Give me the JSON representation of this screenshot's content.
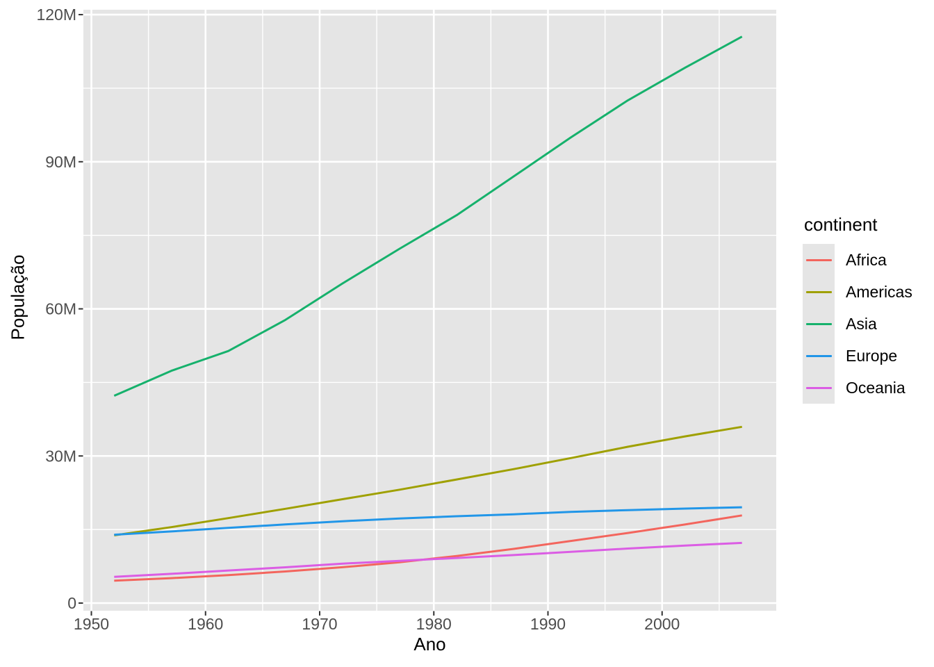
{
  "figure": {
    "background": "#FFFFFF",
    "panel_background": "#E5E5E5",
    "gridline_color": "#FFFFFF",
    "tick_color": "#333333",
    "axis_text_color": "#4D4D4D",
    "axis_title_color": "#000000"
  },
  "chart_data": {
    "type": "line",
    "title": "",
    "xlabel": "Ano",
    "ylabel": "População",
    "legend_title": "continent",
    "legend_position": "right",
    "grid": true,
    "x": [
      1952,
      1957,
      1962,
      1967,
      1972,
      1977,
      1982,
      1987,
      1992,
      1997,
      2002,
      2007
    ],
    "series": [
      {
        "name": "Africa",
        "color": "#F3655D",
        "values": [
          4.57,
          5.09,
          5.7,
          6.45,
          7.31,
          8.33,
          9.6,
          11.05,
          12.67,
          14.3,
          16.03,
          17.88
        ]
      },
      {
        "name": "Americas",
        "color": "#9FA000",
        "values": [
          13.81,
          15.48,
          17.33,
          19.23,
          21.18,
          23.12,
          25.21,
          27.31,
          29.57,
          31.88,
          33.99,
          35.95
        ]
      },
      {
        "name": "Asia",
        "color": "#16B16C",
        "values": [
          42.28,
          47.36,
          51.4,
          57.75,
          65.18,
          72.26,
          79.1,
          87.01,
          94.95,
          102.52,
          109.15,
          115.51
        ]
      },
      {
        "name": "Europe",
        "color": "#2196E8",
        "values": [
          13.94,
          14.6,
          15.35,
          16.04,
          16.69,
          17.24,
          17.71,
          18.1,
          18.6,
          18.96,
          19.27,
          19.54
        ]
      },
      {
        "name": "Oceania",
        "color": "#DB5DE4",
        "values": [
          5.34,
          5.97,
          6.64,
          7.3,
          8.05,
          8.62,
          9.2,
          9.79,
          10.46,
          11.12,
          11.73,
          12.27
        ]
      }
    ],
    "x_axis": {
      "tick_labels": [
        "1950",
        "1960",
        "1970",
        "1980",
        "1990",
        "2000"
      ],
      "tick_values": [
        1950,
        1960,
        1970,
        1980,
        1990,
        2000
      ],
      "minor_values": [
        1955,
        1965,
        1975,
        1985,
        1995,
        2005
      ],
      "range": [
        1949.3,
        2010.0
      ]
    },
    "y_axis": {
      "tick_labels": [
        "0",
        "30M",
        "60M",
        "90M",
        "120M"
      ],
      "tick_values": [
        0,
        30,
        60,
        90,
        120
      ],
      "minor_values": [
        15,
        45,
        75,
        105
      ],
      "range": [
        -1.56,
        121.0
      ],
      "unit": "millions"
    }
  }
}
